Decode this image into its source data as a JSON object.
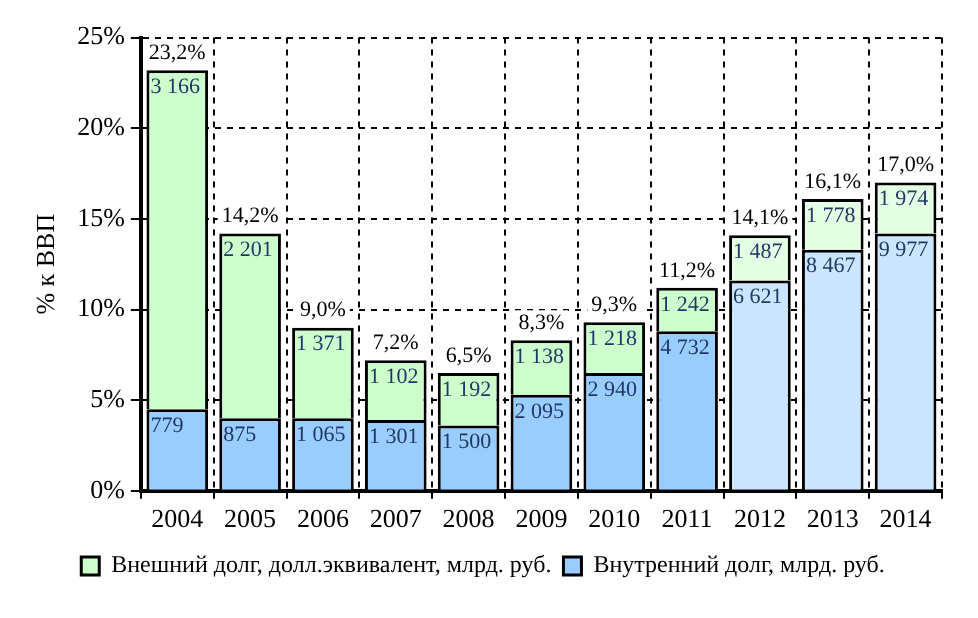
{
  "chart_data": {
    "type": "bar",
    "ylabel": "% к ВВП",
    "stacked": true,
    "categories": [
      "2004",
      "2005",
      "2006",
      "2007",
      "2008",
      "2009",
      "2010",
      "2011",
      "2012",
      "2013",
      "2014"
    ],
    "series": [
      {
        "name": "Внутренний долг, млрд. руб.",
        "color": "#99ccff",
        "colors": [
          "#99ccff",
          "#99ccff",
          "#99ccff",
          "#99ccff",
          "#99ccff",
          "#99ccff",
          "#99ccff",
          "#99ccff",
          "#cce5ff",
          "#cce5ff",
          "#cce5ff"
        ],
        "values": [
          4.5,
          4.0,
          4.0,
          3.9,
          3.6,
          5.3,
          6.5,
          8.8,
          11.6,
          13.3,
          14.2
        ]
      },
      {
        "name": "Внешний долг, долл.эквивалент, млрд. руб.",
        "color": "#ccffcc",
        "colors": [
          "#ccffcc",
          "#ccffcc",
          "#ccffcc",
          "#ccffcc",
          "#ccffcc",
          "#ccffcc",
          "#ccffcc",
          "#ccffcc",
          "#e5ffe5",
          "#e5ffe5",
          "#e5ffe5"
        ],
        "values": [
          18.7,
          10.2,
          5.0,
          3.3,
          2.9,
          3.0,
          2.8,
          2.4,
          2.5,
          2.8,
          2.8
        ]
      }
    ],
    "totals": [
      "23,2%",
      "14,2%",
      "9,0%",
      "7,2%",
      "6,5%",
      "8,3%",
      "9,3%",
      "11,2%",
      "14,1%",
      "16,1%",
      "17,0%"
    ],
    "annotations": [
      {
        "text": "779",
        "x": "2004",
        "y": 4.5
      },
      {
        "text": "875",
        "x": "2005",
        "y": 4.0
      },
      {
        "text": "1 065",
        "x": "2006",
        "y": 4.0
      },
      {
        "text": "1 301",
        "x": "2007",
        "y": 3.9
      },
      {
        "text": "1 500",
        "x": "2008",
        "y": 3.6
      },
      {
        "text": "2 095",
        "x": "2009",
        "y": 5.3
      },
      {
        "text": "2 940",
        "x": "2010",
        "y": 6.5
      },
      {
        "text": "4 732",
        "x": "2011",
        "y": 8.8
      },
      {
        "text": "6 621",
        "x": "2012",
        "y": 11.6
      },
      {
        "text": "8 467",
        "x": "2013",
        "y": 13.3
      },
      {
        "text": "9 977",
        "x": "2014",
        "y": 14.2
      },
      {
        "text": "3 166",
        "x": "2004",
        "y": 23.2
      },
      {
        "text": "2 201",
        "x": "2005",
        "y": 14.2
      },
      {
        "text": "1 371",
        "x": "2006",
        "y": 9.0
      },
      {
        "text": "1 102",
        "x": "2007",
        "y": 7.2
      },
      {
        "text": "1 192",
        "x": "2008",
        "y": 6.5
      },
      {
        "text": "1 138",
        "x": "2009",
        "y": 8.3
      },
      {
        "text": "1 218",
        "x": "2010",
        "y": 9.3
      },
      {
        "text": "1 242",
        "x": "2011",
        "y": 11.2
      },
      {
        "text": "1 487",
        "x": "2012",
        "y": 14.1
      },
      {
        "text": "1 778",
        "x": "2013",
        "y": 16.1
      },
      {
        "text": "1 974",
        "x": "2014",
        "y": 17.0
      }
    ],
    "ylim": [
      0,
      25
    ],
    "yticks": [
      {
        "value": 0,
        "label": "0%"
      },
      {
        "value": 5,
        "label": "5%"
      },
      {
        "value": 10,
        "label": "10%"
      },
      {
        "value": 15,
        "label": "15%"
      },
      {
        "value": 20,
        "label": "20%"
      },
      {
        "value": 25,
        "label": "25%"
      }
    ],
    "grid": true,
    "legend": "bottom"
  }
}
